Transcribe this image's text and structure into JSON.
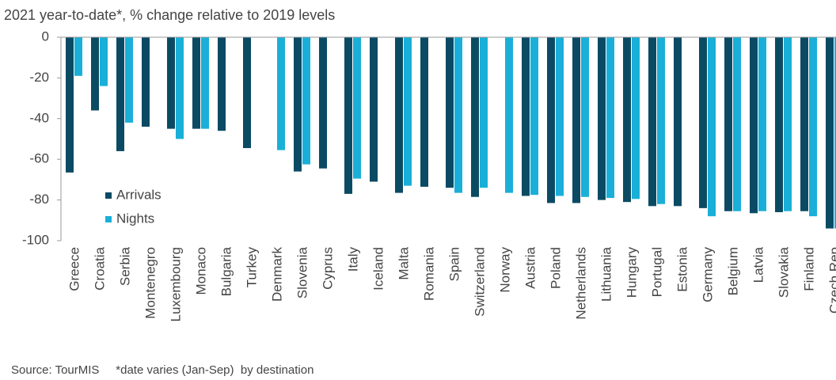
{
  "chart_data": {
    "type": "bar",
    "title": "2021 year-to-date*,  % change relative to 2019 levels",
    "note": "Source: TourMIS     *date varies (Jan-Sep)  by destination",
    "categories": [
      "Greece",
      "Croatia",
      "Serbia",
      "Montenegro",
      "Luxembourg",
      "Monaco",
      "Bulgaria",
      "Turkey",
      "Denmark",
      "Slovenia",
      "Cyprus",
      "Italy",
      "Iceland",
      "Malta",
      "Romania",
      "Spain",
      "Switzerland",
      "Norway",
      "Austria",
      "Poland",
      "Netherlands",
      "Lithuania",
      "Hungary",
      "Portugal",
      "Estonia",
      "Germany",
      "Belgium",
      "Latvia",
      "Slovakia",
      "Finland",
      "Czech Rep"
    ],
    "series": [
      {
        "name": "Arrivals",
        "color": "#0b4a63",
        "values": [
          -66.5,
          -36,
          -56,
          -44,
          -45,
          -45,
          -46,
          -54.5,
          null,
          -66,
          -64.5,
          -77,
          -71,
          -76.5,
          -73.5,
          -74,
          -78.5,
          null,
          -78,
          -81.5,
          -81.5,
          -80,
          -81,
          -83,
          -83,
          -84,
          -85.5,
          -86.5,
          -86,
          -85.5,
          -94
        ]
      },
      {
        "name": "Nights",
        "color": "#1aafd8",
        "values": [
          -19,
          -24,
          -42,
          null,
          -50,
          -45,
          null,
          null,
          -55.5,
          -62.5,
          null,
          -69.5,
          null,
          -73,
          null,
          -76.5,
          -74,
          -76.5,
          -77.5,
          -78,
          -78.5,
          -79,
          -79.5,
          -82,
          null,
          -88,
          -85.5,
          -85.5,
          -85.5,
          -88,
          -94
        ]
      }
    ],
    "ylim": [
      -100,
      0
    ],
    "yticks": [
      0,
      -20,
      -40,
      -60,
      -80,
      -100
    ],
    "legend": "lower-left"
  }
}
